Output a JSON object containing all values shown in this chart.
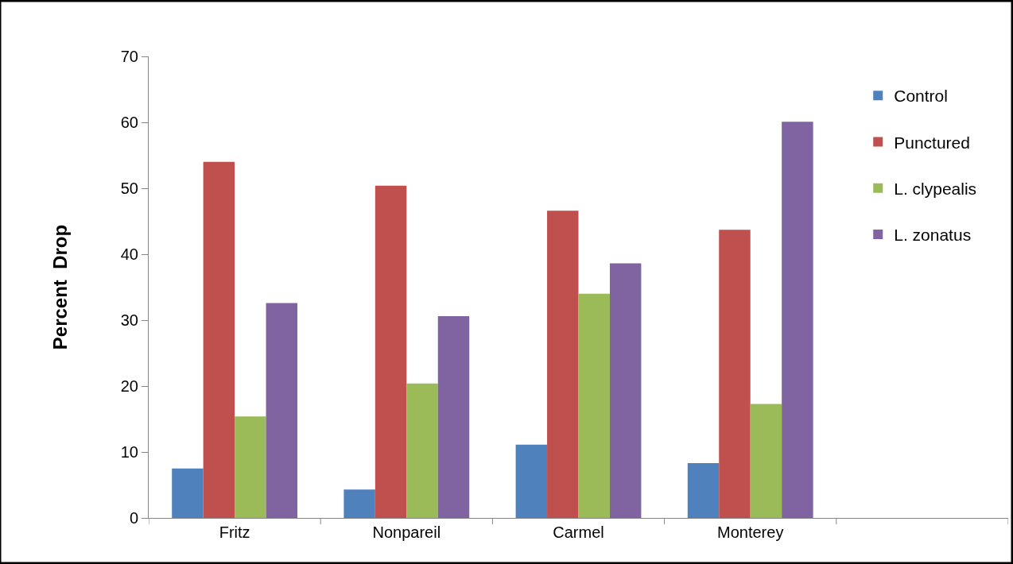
{
  "chart_data": {
    "type": "bar",
    "ylabel": "Percent  Drop",
    "categories": [
      "Fritz",
      "Nonpareil",
      "Carmel",
      "Monterey",
      null
    ],
    "series": [
      {
        "name": "Control",
        "color": "#4f81bd",
        "values": [
          7.5,
          4.3,
          11.1,
          8.3,
          null
        ]
      },
      {
        "name": "Punctured",
        "color": "#c0504d",
        "values": [
          54.0,
          50.4,
          46.6,
          43.7,
          null
        ]
      },
      {
        "name": "L. clypealis",
        "color": "#9bbb59",
        "values": [
          15.4,
          20.4,
          34.0,
          17.3,
          null
        ]
      },
      {
        "name": "L. zonatus",
        "color": "#8064a2",
        "values": [
          32.6,
          30.6,
          38.6,
          60.1,
          null
        ]
      }
    ],
    "ylim": [
      0,
      70
    ],
    "yticks": [
      0,
      10,
      20,
      30,
      40,
      50,
      60,
      70
    ],
    "legend": "top right"
  }
}
